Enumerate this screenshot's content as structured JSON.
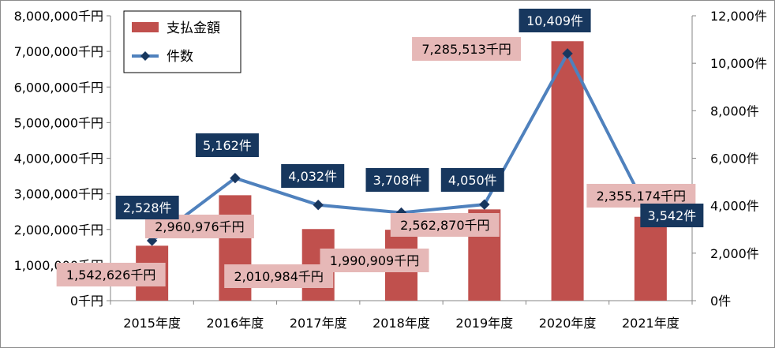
{
  "chart_data": {
    "type": "bar",
    "categories": [
      "2015年度",
      "2016年度",
      "2017年度",
      "2018年度",
      "2019年度",
      "2020年度",
      "2021年度"
    ],
    "series": [
      {
        "name": "支払金額",
        "kind": "bar",
        "axis": "left",
        "color": "#c0504d",
        "values": [
          1542626,
          2960976,
          2010984,
          1990909,
          2562870,
          7285513,
          2355174
        ],
        "labels": [
          "1,542,626千円",
          "2,960,976千円",
          "2,010,984千円",
          "1,990,909千円",
          "2,562,870千円",
          "7,285,513千円",
          "2,355,174千円"
        ]
      },
      {
        "name": "件数",
        "kind": "line",
        "axis": "right",
        "color": "#4f81bd",
        "values": [
          2528,
          5162,
          4032,
          3708,
          4050,
          10409,
          3542
        ],
        "labels": [
          "2,528件",
          "5,162件",
          "4,032件",
          "3,708件",
          "4,050件",
          "10,409件",
          "3,542件"
        ]
      }
    ],
    "left_axis": {
      "ylim": [
        0,
        8000000
      ],
      "ticks": [
        0,
        1000000,
        2000000,
        3000000,
        4000000,
        5000000,
        6000000,
        7000000,
        8000000
      ],
      "tick_labels": [
        "0千円",
        "1,000,000千円",
        "2,000,000千円",
        "3,000,000千円",
        "4,000,000千円",
        "5,000,000千円",
        "6,000,000千円",
        "7,000,000千円",
        "8,000,000千円"
      ]
    },
    "right_axis": {
      "ylim": [
        0,
        12000
      ],
      "ticks": [
        0,
        2000,
        4000,
        6000,
        8000,
        10000,
        12000
      ],
      "tick_labels": [
        "0件",
        "2,000件",
        "4,000件",
        "6,000件",
        "8,000件",
        "10,000件",
        "12,000件"
      ]
    },
    "grid": false,
    "legend": "top-left",
    "label_colors": {
      "amount_box": "#e6b8b7",
      "count_box": "#17375e"
    }
  }
}
